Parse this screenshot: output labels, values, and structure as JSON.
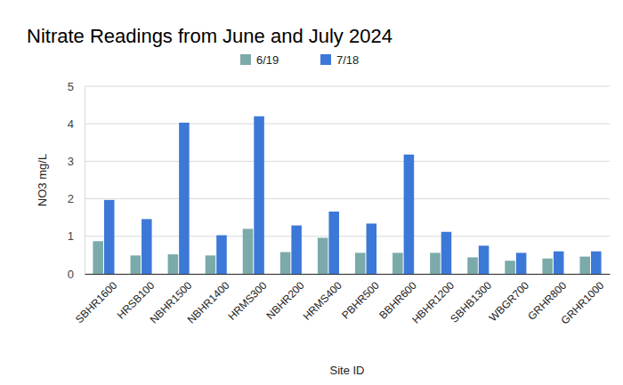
{
  "chart_data": {
    "type": "bar",
    "title": "Nitrate Readings from June and July 2024",
    "x_label": "Site ID",
    "y_label": "NO3 mg/L",
    "categories": [
      "SBHR1600",
      "HRSB100",
      "NBHR1500",
      "NBHR1400",
      "HRMS300",
      "NBHR200",
      "HRMS400",
      "PBHR500",
      "BBHR600",
      "HBHR1200",
      "SBHB1300",
      "WBGR700",
      "GRHR800",
      "GRHR1000"
    ],
    "series": [
      {
        "name": "6/19",
        "color": "#7aaaa9",
        "values": [
          0.87,
          0.49,
          0.52,
          0.49,
          1.2,
          0.58,
          0.96,
          0.56,
          0.56,
          0.56,
          0.44,
          0.35,
          0.41,
          0.46
        ]
      },
      {
        "name": "7/18",
        "color": "#3c78d8",
        "values": [
          1.97,
          1.46,
          4.03,
          1.03,
          4.2,
          1.29,
          1.66,
          1.34,
          3.18,
          1.12,
          0.75,
          0.56,
          0.6,
          0.6
        ]
      }
    ],
    "ylim": [
      0,
      5
    ],
    "yticks": [
      0,
      1,
      2,
      3,
      4,
      5
    ],
    "grid": true,
    "legend": "top"
  }
}
